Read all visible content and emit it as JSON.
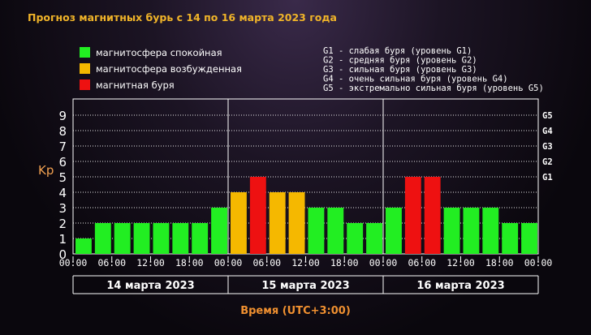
{
  "chart_data": {
    "type": "bar",
    "title": "Прогноз магнитных бурь с 14 по 16 марта 2023 года",
    "ylabel": "Kp",
    "xlabel": "Время (UTC+3:00)",
    "ylim": [
      0,
      9
    ],
    "yticks": [
      "0",
      "1",
      "2",
      "3",
      "4",
      "5",
      "6",
      "7",
      "8",
      "9"
    ],
    "storm_levels": [
      {
        "label": "G1",
        "value": 5
      },
      {
        "label": "G2",
        "value": 6
      },
      {
        "label": "G3",
        "value": 7
      },
      {
        "label": "G4",
        "value": 8
      },
      {
        "label": "G5",
        "value": 9
      }
    ],
    "x_tick_labels": [
      "00:00",
      "06:00",
      "12:00",
      "18:00",
      "00:00",
      "06:00",
      "12:00",
      "18:00",
      "00:00",
      "06:00",
      "12:00",
      "18:00",
      "00:00"
    ],
    "days": [
      "14 марта 2023",
      "15 марта 2023",
      "16 марта 2023"
    ],
    "values": [
      1,
      2,
      2,
      2,
      2,
      2,
      2,
      3,
      4,
      5,
      4,
      4,
      3,
      3,
      2,
      2,
      3,
      5,
      5,
      3,
      3,
      3,
      2,
      2
    ],
    "status": [
      "quiet",
      "quiet",
      "quiet",
      "quiet",
      "quiet",
      "quiet",
      "quiet",
      "quiet",
      "excited",
      "storm",
      "excited",
      "excited",
      "quiet",
      "quiet",
      "quiet",
      "quiet",
      "quiet",
      "storm",
      "storm",
      "quiet",
      "quiet",
      "quiet",
      "quiet",
      "quiet"
    ],
    "colors": {
      "quiet": "#22ee22",
      "excited": "#f5b800",
      "storm": "#ee1111",
      "grid": "#ffffff"
    },
    "legend": [
      {
        "key": "quiet",
        "label": "магнитосфера спокойная"
      },
      {
        "key": "excited",
        "label": "магнитосфера возбужденная"
      },
      {
        "key": "storm",
        "label": "магнитная буря"
      }
    ],
    "storm_legend": [
      "G1 - слабая буря (уровень G1)",
      "G2 - средняя буря (уровень G2)",
      "G3 - сильная буря (уровень G3)",
      "G4 - очень сильная буря (уровень G4)",
      "G5 - экстремально сильная буря (уровень G5)"
    ]
  }
}
